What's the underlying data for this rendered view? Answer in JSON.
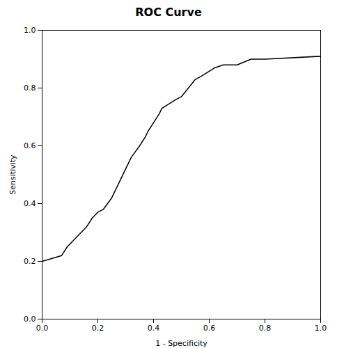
{
  "chart_data": {
    "type": "line",
    "title": "ROC Curve",
    "xlabel": "1 - Specificity",
    "ylabel": "Sensitivity",
    "x": [
      0.0,
      0.0,
      0.07,
      0.07,
      0.09,
      0.09,
      0.12,
      0.14,
      0.16,
      0.18,
      0.2,
      0.22,
      0.22,
      0.25,
      0.27,
      0.27,
      0.27,
      0.3,
      0.32,
      0.35,
      0.35,
      0.37,
      0.37,
      0.38,
      0.38,
      0.4,
      0.4,
      0.42,
      0.42,
      0.43,
      0.43,
      0.48,
      0.5,
      0.55,
      0.57,
      0.57,
      0.57,
      0.62,
      0.65,
      0.7,
      0.75,
      0.75,
      0.75,
      0.8,
      1.0
    ],
    "values": [
      0.2,
      0.2,
      0.22,
      0.22,
      0.25,
      0.25,
      0.28,
      0.3,
      0.32,
      0.35,
      0.37,
      0.38,
      0.38,
      0.42,
      0.46,
      0.46,
      0.46,
      0.52,
      0.56,
      0.6,
      0.6,
      0.63,
      0.63,
      0.65,
      0.65,
      0.68,
      0.68,
      0.71,
      0.71,
      0.73,
      0.73,
      0.76,
      0.77,
      0.83,
      0.84,
      0.84,
      0.84,
      0.87,
      0.88,
      0.88,
      0.9,
      0.9,
      0.9,
      0.9,
      0.91
    ],
    "xlim": [
      0.0,
      1.0
    ],
    "ylim": [
      0.0,
      1.0
    ],
    "xticks": [
      {
        "value": 0,
        "label": "0.0"
      },
      0.2,
      0.4,
      0.6,
      0.8,
      {
        "value": 1,
        "label": "1.0"
      }
    ],
    "yticks": [
      {
        "value": 0,
        "label": "0.0"
      },
      0.2,
      0.4,
      0.6,
      0.8,
      {
        "value": 1,
        "label": "1.0"
      }
    ],
    "grid": false
  }
}
